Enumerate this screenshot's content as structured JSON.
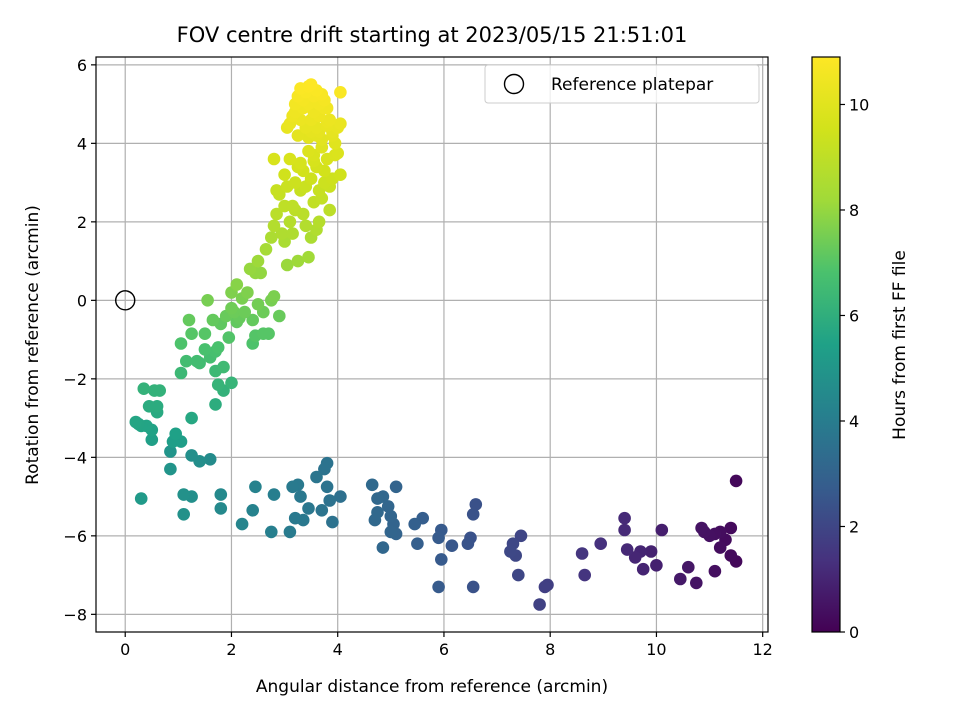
{
  "chart_data": {
    "type": "scatter",
    "title": "FOV centre drift starting at 2023/05/15 21:51:01",
    "xlabel": "Angular distance from reference (arcmin)",
    "ylabel": "Rotation from reference (arcmin)",
    "xlim": [
      -0.55,
      12.1
    ],
    "ylim": [
      -8.45,
      6.2
    ],
    "xticks": [
      0,
      2,
      4,
      6,
      8,
      10,
      12
    ],
    "yticks": [
      -8,
      -6,
      -4,
      -2,
      0,
      2,
      4,
      6
    ],
    "grid": true,
    "legend": {
      "placement": "top-right",
      "label": "Reference platepar",
      "marker": "open-circle"
    },
    "reference_point": {
      "x": 0,
      "y": 0
    },
    "colorbar": {
      "label": "Hours from first FF file",
      "colormap": "viridis",
      "range": [
        0,
        10.9
      ],
      "ticks": [
        0,
        2,
        4,
        6,
        8,
        10
      ]
    },
    "series": [
      {
        "points": [
          [
            11.5,
            -4.6
          ],
          [
            11.5,
            -6.65
          ],
          [
            11.4,
            -6.5
          ],
          [
            11.4,
            -5.8
          ],
          [
            11.3,
            -6.1
          ],
          [
            11.2,
            -6.3
          ],
          [
            11.2,
            -5.9
          ],
          [
            11.1,
            -5.95
          ],
          [
            11.1,
            -6.9
          ],
          [
            11.0,
            -6.0
          ],
          [
            10.9,
            -5.9
          ],
          [
            10.85,
            -5.8
          ],
          [
            10.75,
            -7.2
          ],
          [
            10.6,
            -6.8
          ],
          [
            10.45,
            -7.1
          ],
          [
            10.1,
            -5.85
          ],
          [
            10.0,
            -6.75
          ],
          [
            9.9,
            -6.4
          ],
          [
            9.75,
            -6.85
          ],
          [
            9.7,
            -6.4
          ],
          [
            9.6,
            -6.55
          ],
          [
            9.45,
            -6.35
          ],
          [
            9.4,
            -5.85
          ],
          [
            9.4,
            -5.55
          ],
          [
            8.95,
            -6.2
          ],
          [
            8.65,
            -7.0
          ],
          [
            8.6,
            -6.45
          ],
          [
            7.95,
            -7.25
          ],
          [
            7.9,
            -7.3
          ],
          [
            7.8,
            -7.75
          ],
          [
            7.45,
            -6.0
          ],
          [
            7.4,
            -7.0
          ],
          [
            7.35,
            -6.5
          ],
          [
            7.3,
            -6.2
          ],
          [
            7.25,
            -6.4
          ],
          [
            6.6,
            -5.2
          ],
          [
            6.55,
            -7.3
          ],
          [
            6.55,
            -5.45
          ],
          [
            6.5,
            -6.05
          ],
          [
            6.45,
            -6.2
          ],
          [
            6.15,
            -6.25
          ],
          [
            5.95,
            -5.85
          ],
          [
            5.95,
            -6.6
          ],
          [
            5.9,
            -6.05
          ],
          [
            5.9,
            -7.3
          ],
          [
            5.6,
            -5.55
          ],
          [
            5.5,
            -6.2
          ],
          [
            5.45,
            -5.7
          ],
          [
            5.1,
            -4.75
          ],
          [
            5.1,
            -5.95
          ],
          [
            5.05,
            -5.7
          ],
          [
            5.0,
            -5.9
          ],
          [
            5.0,
            -5.5
          ],
          [
            4.95,
            -5.25
          ],
          [
            4.85,
            -6.3
          ],
          [
            4.85,
            -5.0
          ],
          [
            4.75,
            -5.4
          ],
          [
            4.75,
            -5.05
          ],
          [
            4.7,
            -5.6
          ],
          [
            4.65,
            -4.7
          ],
          [
            4.05,
            -5.0
          ],
          [
            3.9,
            -5.65
          ],
          [
            3.85,
            -5.1
          ],
          [
            3.8,
            -4.75
          ],
          [
            3.8,
            -4.15
          ],
          [
            3.75,
            -4.3
          ],
          [
            3.7,
            -5.35
          ],
          [
            3.6,
            -4.5
          ],
          [
            3.45,
            -5.3
          ],
          [
            3.35,
            -5.6
          ],
          [
            3.3,
            -5.0
          ],
          [
            3.25,
            -4.7
          ],
          [
            3.2,
            -5.55
          ],
          [
            3.15,
            -4.75
          ],
          [
            3.1,
            -5.9
          ],
          [
            2.75,
            -5.9
          ],
          [
            2.8,
            -4.95
          ],
          [
            2.45,
            -4.75
          ],
          [
            2.4,
            -5.35
          ],
          [
            2.2,
            -5.7
          ],
          [
            1.8,
            -5.3
          ],
          [
            1.8,
            -4.95
          ],
          [
            1.6,
            -4.05
          ],
          [
            1.4,
            -4.1
          ],
          [
            1.25,
            -3.0
          ],
          [
            1.25,
            -3.95
          ],
          [
            1.25,
            -5.0
          ],
          [
            1.1,
            -5.45
          ],
          [
            1.1,
            -4.95
          ],
          [
            1.05,
            -3.6
          ],
          [
            0.95,
            -3.4
          ],
          [
            0.9,
            -3.6
          ],
          [
            0.85,
            -3.85
          ],
          [
            0.85,
            -4.3
          ],
          [
            0.6,
            -2.85
          ],
          [
            0.65,
            -2.3
          ],
          [
            0.6,
            -2.7
          ],
          [
            0.55,
            -2.3
          ],
          [
            0.5,
            -3.3
          ],
          [
            0.5,
            -3.55
          ],
          [
            0.45,
            -2.7
          ],
          [
            0.4,
            -3.2
          ],
          [
            0.35,
            -2.25
          ],
          [
            0.3,
            -3.2
          ],
          [
            0.3,
            -5.05
          ],
          [
            0.25,
            -3.15
          ],
          [
            0.2,
            -3.1
          ],
          [
            1.05,
            -1.1
          ],
          [
            1.05,
            -1.85
          ],
          [
            1.15,
            -1.55
          ],
          [
            1.2,
            -0.5
          ],
          [
            1.25,
            -0.85
          ],
          [
            1.35,
            -1.55
          ],
          [
            1.4,
            -1.6
          ],
          [
            1.5,
            -0.85
          ],
          [
            1.5,
            -1.25
          ],
          [
            1.55,
            0.0
          ],
          [
            1.6,
            -1.45
          ],
          [
            1.65,
            -0.5
          ],
          [
            1.7,
            -1.8
          ],
          [
            1.7,
            -1.3
          ],
          [
            1.7,
            -2.65
          ],
          [
            1.75,
            -1.2
          ],
          [
            1.75,
            -2.15
          ],
          [
            1.8,
            -0.6
          ],
          [
            1.85,
            -2.3
          ],
          [
            1.85,
            -1.7
          ],
          [
            1.9,
            -0.4
          ],
          [
            1.95,
            -0.95
          ],
          [
            2.0,
            -0.2
          ],
          [
            2.0,
            0.2
          ],
          [
            2.0,
            -2.1
          ],
          [
            2.05,
            -0.3
          ],
          [
            2.1,
            -0.55
          ],
          [
            2.1,
            0.4
          ],
          [
            2.15,
            -0.45
          ],
          [
            2.2,
            0.05
          ],
          [
            2.25,
            -0.3
          ],
          [
            2.3,
            0.2
          ],
          [
            2.35,
            0.8
          ],
          [
            2.4,
            -0.5
          ],
          [
            2.4,
            -1.1
          ],
          [
            2.45,
            -0.9
          ],
          [
            2.45,
            0.7
          ],
          [
            2.5,
            1.0
          ],
          [
            2.5,
            -0.1
          ],
          [
            2.55,
            0.7
          ],
          [
            2.6,
            -0.85
          ],
          [
            2.6,
            -0.3
          ],
          [
            2.65,
            1.3
          ],
          [
            2.7,
            -0.85
          ],
          [
            2.75,
            0.0
          ],
          [
            2.75,
            1.6
          ],
          [
            2.8,
            0.1
          ],
          [
            2.8,
            1.9
          ],
          [
            2.85,
            2.2
          ],
          [
            2.9,
            -0.4
          ],
          [
            2.95,
            1.7
          ],
          [
            3.0,
            2.4
          ],
          [
            3.0,
            1.5
          ],
          [
            3.05,
            0.9
          ],
          [
            3.1,
            2.0
          ],
          [
            3.15,
            1.7
          ],
          [
            3.2,
            2.3
          ],
          [
            3.25,
            1.0
          ],
          [
            3.3,
            2.8
          ],
          [
            3.35,
            2.2
          ],
          [
            3.4,
            1.9
          ],
          [
            3.45,
            1.1
          ],
          [
            3.5,
            1.6
          ],
          [
            3.55,
            2.5
          ],
          [
            3.6,
            1.8
          ],
          [
            3.65,
            2.0
          ],
          [
            3.7,
            2.6
          ],
          [
            3.75,
            3.0
          ],
          [
            3.85,
            2.3
          ],
          [
            3.9,
            3.1
          ],
          [
            2.8,
            3.6
          ],
          [
            2.85,
            2.8
          ],
          [
            2.9,
            2.7
          ],
          [
            3.0,
            3.2
          ],
          [
            3.05,
            2.9
          ],
          [
            3.1,
            3.6
          ],
          [
            3.15,
            2.4
          ],
          [
            3.2,
            3.0
          ],
          [
            3.25,
            3.4
          ],
          [
            3.3,
            3.5
          ],
          [
            3.35,
            3.3
          ],
          [
            3.4,
            2.9
          ],
          [
            3.45,
            3.8
          ],
          [
            3.5,
            3.1
          ],
          [
            3.55,
            3.7
          ],
          [
            3.6,
            3.4
          ],
          [
            3.65,
            2.8
          ],
          [
            3.7,
            3.9
          ],
          [
            3.8,
            3.6
          ],
          [
            3.85,
            2.9
          ],
          [
            3.95,
            3.7
          ],
          [
            4.05,
            3.2
          ],
          [
            4.0,
            3.75
          ],
          [
            3.9,
            4.2
          ],
          [
            3.8,
            4.45
          ],
          [
            3.75,
            3.3
          ],
          [
            3.65,
            4.3
          ],
          [
            3.05,
            4.4
          ],
          [
            3.1,
            4.5
          ],
          [
            3.15,
            4.7
          ],
          [
            3.2,
            4.8
          ],
          [
            3.25,
            4.2
          ],
          [
            3.3,
            4.6
          ],
          [
            3.35,
            4.9
          ],
          [
            3.4,
            4.4
          ],
          [
            3.45,
            5.0
          ],
          [
            3.5,
            4.6
          ],
          [
            3.55,
            4.8
          ],
          [
            3.6,
            4.4
          ],
          [
            3.65,
            4.7
          ],
          [
            3.7,
            4.1
          ],
          [
            3.75,
            4.9
          ],
          [
            3.8,
            4.55
          ],
          [
            3.85,
            4.6
          ],
          [
            3.9,
            4.3
          ],
          [
            3.95,
            4.0
          ],
          [
            4.0,
            4.4
          ],
          [
            4.05,
            4.5
          ],
          [
            3.2,
            5.0
          ],
          [
            3.25,
            5.2
          ],
          [
            3.3,
            5.4
          ],
          [
            3.35,
            5.1
          ],
          [
            3.4,
            5.3
          ],
          [
            3.45,
            5.45
          ],
          [
            3.5,
            5.5
          ],
          [
            3.55,
            5.2
          ],
          [
            3.6,
            5.35
          ],
          [
            3.65,
            5.0
          ],
          [
            3.7,
            5.25
          ],
          [
            3.75,
            5.1
          ],
          [
            3.8,
            4.9
          ],
          [
            4.05,
            5.3
          ],
          [
            3.5,
            4.3
          ],
          [
            3.6,
            4.2
          ],
          [
            3.55,
            3.55
          ],
          [
            3.45,
            4.15
          ]
        ]
      }
    ]
  }
}
